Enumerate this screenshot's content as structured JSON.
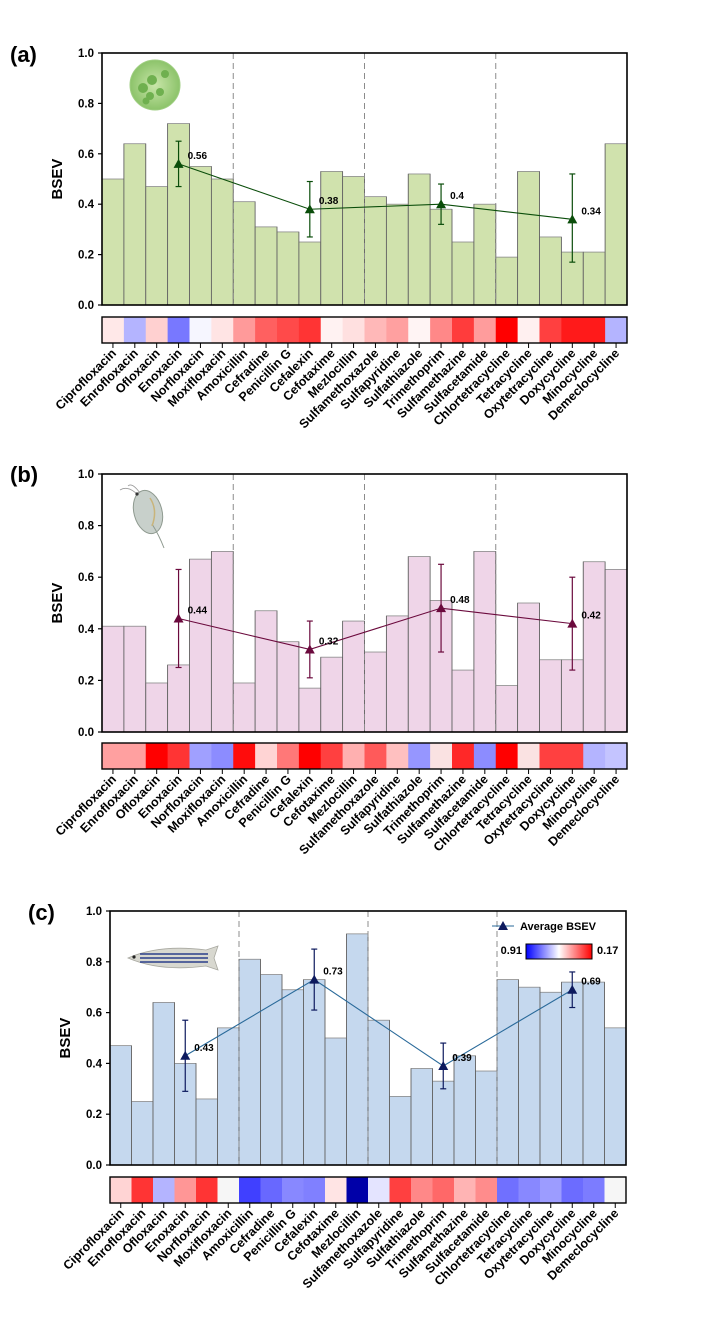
{
  "chart_data": [
    {
      "type": "bar",
      "panel_label": "(a)",
      "organism_icon": "algae-cell-icon",
      "ylabel": "BSEV",
      "xlabel": "",
      "ylim": [
        0,
        1.0
      ],
      "yticks": [
        "0.0",
        "0.2",
        "0.4",
        "0.6",
        "0.8",
        "1.0"
      ],
      "categories": [
        "Ciprofloxacin",
        "Enrofloxacin",
        "Ofloxacin",
        "Enoxacin",
        "Norfloxacin",
        "Moxifloxacin",
        "Amoxicillin",
        "Cefradine",
        "Penicillin G",
        "Cefalexin",
        "Cefotaxime",
        "Mezlocillin",
        "Sulfamethoxazole",
        "Sulfapyridine",
        "Sulfathiazole",
        "Trimethoprim",
        "Sulfamethazine",
        "Sulfacetamide",
        "Chlortetracycline",
        "Tetracycline",
        "Oxytetracycline",
        "Doxycycline",
        "Minocycline",
        "Demeclocycline"
      ],
      "values": [
        0.5,
        0.64,
        0.47,
        0.72,
        0.55,
        0.5,
        0.41,
        0.31,
        0.29,
        0.25,
        0.53,
        0.51,
        0.43,
        0.4,
        0.52,
        0.38,
        0.25,
        0.4,
        0.19,
        0.53,
        0.27,
        0.21,
        0.21,
        0.64
      ],
      "bar_color": "#d0e2ad",
      "group_dividers_after": [
        6,
        12,
        18
      ],
      "average": {
        "name": "Average BSEV",
        "color": "#0a4d0a",
        "x_positions": [
          3,
          9,
          15,
          21
        ],
        "values": [
          0.56,
          0.38,
          0.4,
          0.34
        ],
        "labels": [
          "0.56",
          "0.38",
          "0.4",
          "0.34"
        ],
        "err_low": [
          0.47,
          0.27,
          0.32,
          0.17
        ],
        "err_high": [
          0.65,
          0.49,
          0.48,
          0.52
        ]
      },
      "heatmap_colors": [
        "#ffe8e8",
        "#b4b4ff",
        "#ffd0d0",
        "#7878ff",
        "#f6f6ff",
        "#ffe4e4",
        "#ff9a9a",
        "#ff6060",
        "#ff4a4a",
        "#ff3434",
        "#fff2f2",
        "#ffe0e0",
        "#ffb8b8",
        "#ffa0a0",
        "#fff4f4",
        "#ff8888",
        "#ff3c3c",
        "#ff9c9c",
        "#ff0000",
        "#fff0f0",
        "#ff4040",
        "#ff1a1a",
        "#ff1a1a",
        "#b4b4ff"
      ]
    },
    {
      "type": "bar",
      "panel_label": "(b)",
      "organism_icon": "daphnia-icon",
      "ylabel": "BSEV",
      "xlabel": "",
      "ylim": [
        0,
        1.0
      ],
      "yticks": [
        "0.0",
        "0.2",
        "0.4",
        "0.6",
        "0.8",
        "1.0"
      ],
      "categories": [
        "Ciprofloxacin",
        "Enrofloxacin",
        "Ofloxacin",
        "Enoxacin",
        "Norfloxacin",
        "Moxifloxacin",
        "Amoxicillin",
        "Cefradine",
        "Penicillin G",
        "Cefalexin",
        "Cefotaxime",
        "Mezlocillin",
        "Sulfamethoxazole",
        "Sulfapyridine",
        "Sulfathiazole",
        "Trimethoprim",
        "Sulfamethazine",
        "Sulfacetamide",
        "Chlortetracycline",
        "Tetracycline",
        "Oxytetracycline",
        "Doxycycline",
        "Minocycline",
        "Demeclocycline"
      ],
      "values": [
        0.41,
        0.41,
        0.19,
        0.26,
        0.67,
        0.7,
        0.19,
        0.47,
        0.35,
        0.17,
        0.29,
        0.43,
        0.31,
        0.45,
        0.68,
        0.51,
        0.24,
        0.7,
        0.18,
        0.5,
        0.28,
        0.28,
        0.66,
        0.63
      ],
      "bar_color": "#efd5e8",
      "group_dividers_after": [
        6,
        12,
        18
      ],
      "average": {
        "name": "Average BSEV",
        "color": "#6b0a3d",
        "x_positions": [
          3,
          9,
          15,
          21
        ],
        "values": [
          0.44,
          0.32,
          0.48,
          0.42
        ],
        "labels": [
          "0.44",
          "0.32",
          "0.48",
          "0.42"
        ],
        "err_low": [
          0.25,
          0.21,
          0.31,
          0.24
        ],
        "err_high": [
          0.63,
          0.43,
          0.65,
          0.6
        ]
      },
      "heatmap_colors": [
        "#ffa0a0",
        "#ffa0a0",
        "#ff0000",
        "#ff3434",
        "#a0a0ff",
        "#8c8cff",
        "#ff0c0c",
        "#ffd4d4",
        "#ff7878",
        "#ff0000",
        "#ff4040",
        "#ffb0b0",
        "#ff5a5a",
        "#ffc0c0",
        "#9696ff",
        "#fae2e2",
        "#ff2828",
        "#8c8cff",
        "#ff0000",
        "#fae2e2",
        "#ff4040",
        "#ff4040",
        "#b4b4ff",
        "#c4c4ff"
      ]
    },
    {
      "type": "bar",
      "panel_label": "(c)",
      "organism_icon": "zebrafish-icon",
      "ylabel": "BSEV",
      "xlabel": "",
      "ylim": [
        0,
        1.0
      ],
      "yticks": [
        "0.0",
        "0.2",
        "0.4",
        "0.6",
        "0.8",
        "1.0"
      ],
      "categories": [
        "Ciprofloxacin",
        "Enrofloxacin",
        "Ofloxacin",
        "Enoxacin",
        "Norfloxacin",
        "Moxifloxacin",
        "Amoxicillin",
        "Cefradine",
        "Penicillin G",
        "Cefalexin",
        "Cefotaxime",
        "Mezlocillin",
        "Sulfamethoxazole",
        "Sulfapyridine",
        "Sulfathiazole",
        "Trimethoprim",
        "Sulfamethazine",
        "Sulfacetamide",
        "Chlortetracycline",
        "Tetracycline",
        "Oxytetracycline",
        "Doxycycline",
        "Minocycline",
        "Demeclocycline"
      ],
      "values": [
        0.47,
        0.25,
        0.64,
        0.4,
        0.26,
        0.54,
        0.81,
        0.75,
        0.69,
        0.73,
        0.5,
        0.91,
        0.57,
        0.27,
        0.38,
        0.33,
        0.43,
        0.37,
        0.73,
        0.7,
        0.68,
        0.72,
        0.72,
        0.54
      ],
      "bar_color": "#c5d8ee",
      "group_dividers_after": [
        6,
        12,
        18
      ],
      "average": {
        "name": "Average BSEV",
        "color": "#0d1a5e",
        "line_color": "#2a6a9a",
        "x_positions": [
          3,
          9,
          15,
          21
        ],
        "values": [
          0.43,
          0.73,
          0.39,
          0.69
        ],
        "labels": [
          "0.43",
          "0.73",
          "0.39",
          "0.69"
        ],
        "err_low": [
          0.29,
          0.61,
          0.3,
          0.62
        ],
        "err_high": [
          0.57,
          0.85,
          0.48,
          0.76
        ]
      },
      "heatmap_colors": [
        "#ffd4d4",
        "#ff3434",
        "#b4b4ff",
        "#ff9696",
        "#ff3434",
        "#f6f6f6",
        "#4040ff",
        "#6868ff",
        "#8888ff",
        "#8080ff",
        "#ffe4e4",
        "#0000a8",
        "#e4e4ff",
        "#ff4040",
        "#ff8888",
        "#ff6868",
        "#ffb4b4",
        "#ff8c8c",
        "#7070ff",
        "#8888ff",
        "#9c9cff",
        "#6c6cff",
        "#7c7cff",
        "#f6f6f6"
      ],
      "legend": {
        "line_label": "Average BSEV",
        "colorbar_min_label": "0.91",
        "colorbar_max_label": "0.17",
        "colorbar_colors": [
          "#0000ff",
          "#ffffff",
          "#ff0000"
        ],
        "placement": "top-right"
      }
    }
  ]
}
